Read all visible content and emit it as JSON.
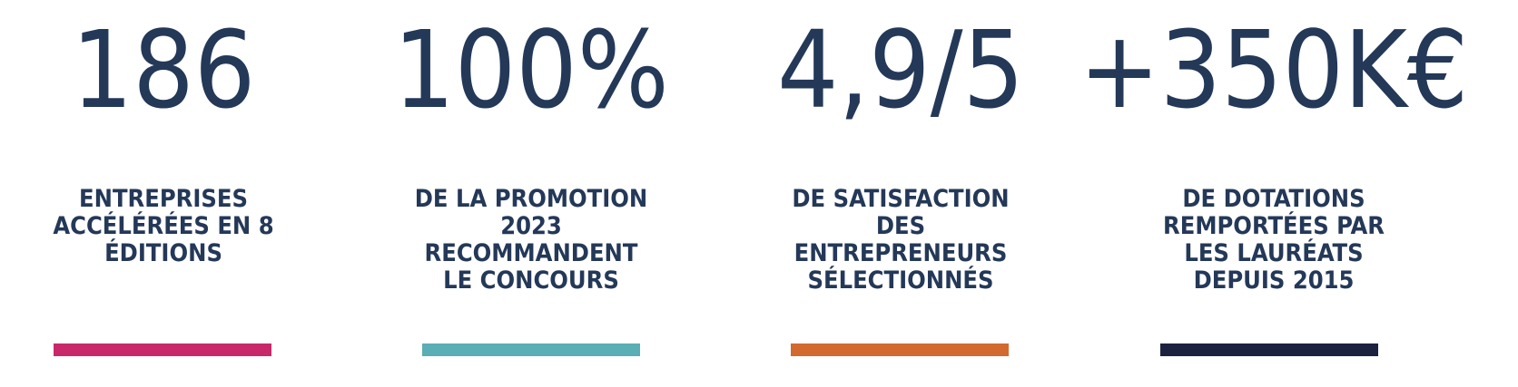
{
  "stats": [
    {
      "value": "186",
      "label": [
        "ENTREPRISES",
        "ACCÉLÉRÉES EN 8",
        "ÉDITIONS"
      ],
      "color": "#c8286a"
    },
    {
      "value": "100%",
      "label": [
        "DE LA PROMOTION",
        "2023",
        "RECOMMANDENT",
        "LE CONCOURS"
      ],
      "color": "#5aaeb5"
    },
    {
      "value": "4,9/5",
      "label": [
        "DE SATISFACTION",
        "DES",
        "ENTREPRENEURS",
        "SÉLECTIONNÉS"
      ],
      "color": "#d2692e"
    },
    {
      "value": "+350K€",
      "label": [
        "DE DOTATIONS",
        "REMPORTÉES PAR",
        "LES LAURÉATS",
        "DEPUIS 2015"
      ],
      "color": "#1b2240"
    }
  ]
}
